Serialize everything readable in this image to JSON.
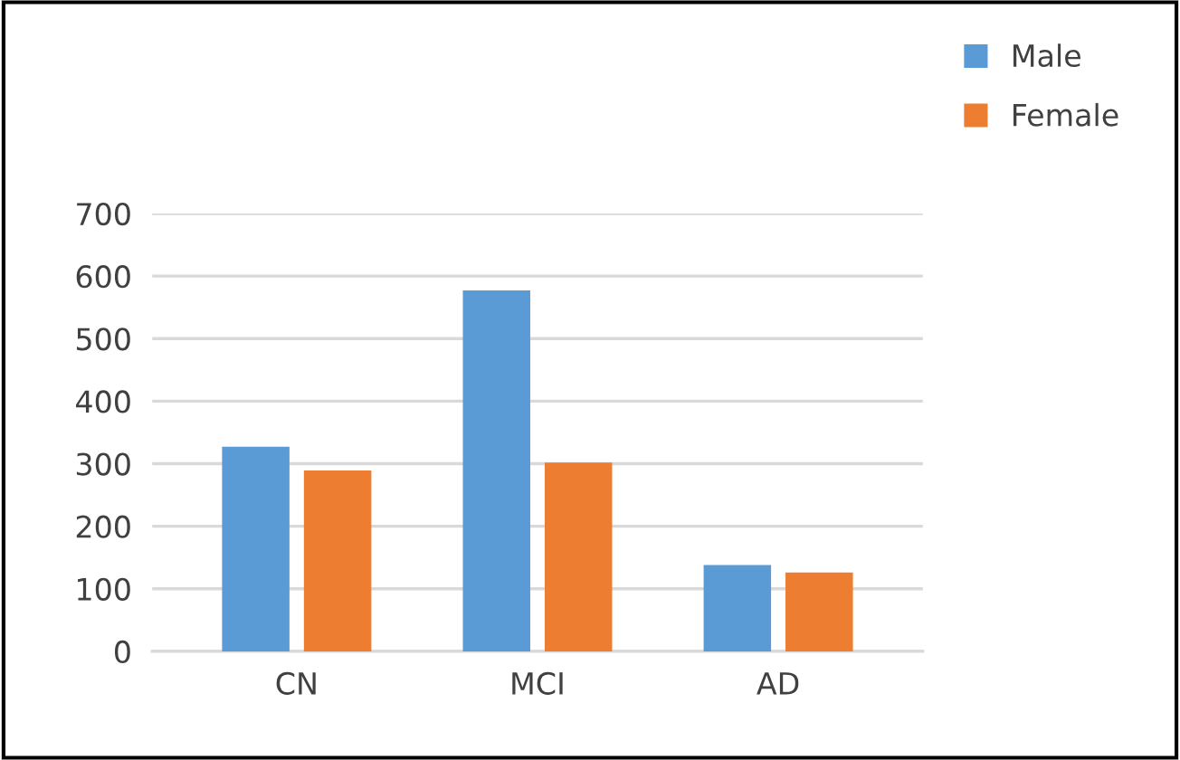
{
  "chart_data": {
    "type": "bar",
    "categories": [
      "CN",
      "MCI",
      "AD"
    ],
    "series": [
      {
        "name": "Male",
        "color": "#5b9bd5",
        "values": [
          327,
          577,
          138
        ]
      },
      {
        "name": "Female",
        "color": "#ed7d31",
        "values": [
          289,
          302,
          126
        ]
      }
    ],
    "ylim": [
      0,
      700
    ],
    "yticks": [
      0,
      100,
      200,
      300,
      400,
      500,
      600,
      700
    ],
    "grid": "y",
    "legend": "top right"
  }
}
